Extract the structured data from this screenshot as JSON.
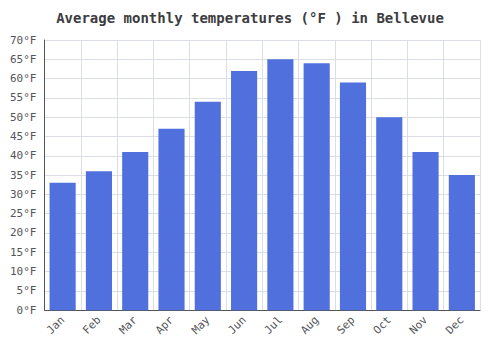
{
  "chart_data": {
    "type": "bar",
    "title": "Average monthly temperatures (°F ) in Bellevue",
    "categories": [
      "Jan",
      "Feb",
      "Mar",
      "Apr",
      "May",
      "Jun",
      "Jul",
      "Aug",
      "Sep",
      "Oct",
      "Nov",
      "Dec"
    ],
    "values": [
      33,
      36,
      41,
      47,
      54,
      62,
      65,
      64,
      59,
      50,
      41,
      35
    ],
    "ylim": [
      0,
      70
    ],
    "yticks": [
      {
        "value": 0,
        "label": "0°F"
      },
      {
        "value": 5,
        "label": "5°F"
      },
      {
        "value": 10,
        "label": "10°F"
      },
      {
        "value": 15,
        "label": "15°F"
      },
      {
        "value": 20,
        "label": "20°F"
      },
      {
        "value": 25,
        "label": "25°F"
      },
      {
        "value": 30,
        "label": "30°F"
      },
      {
        "value": 35,
        "label": "35°F"
      },
      {
        "value": 40,
        "label": "40°F"
      },
      {
        "value": 45,
        "label": "45°F"
      },
      {
        "value": 50,
        "label": "50°F"
      },
      {
        "value": 55,
        "label": "55°F"
      },
      {
        "value": 60,
        "label": "60°F"
      },
      {
        "value": 65,
        "label": "65°F"
      },
      {
        "value": 70,
        "label": "70°F"
      }
    ],
    "grid": true
  }
}
